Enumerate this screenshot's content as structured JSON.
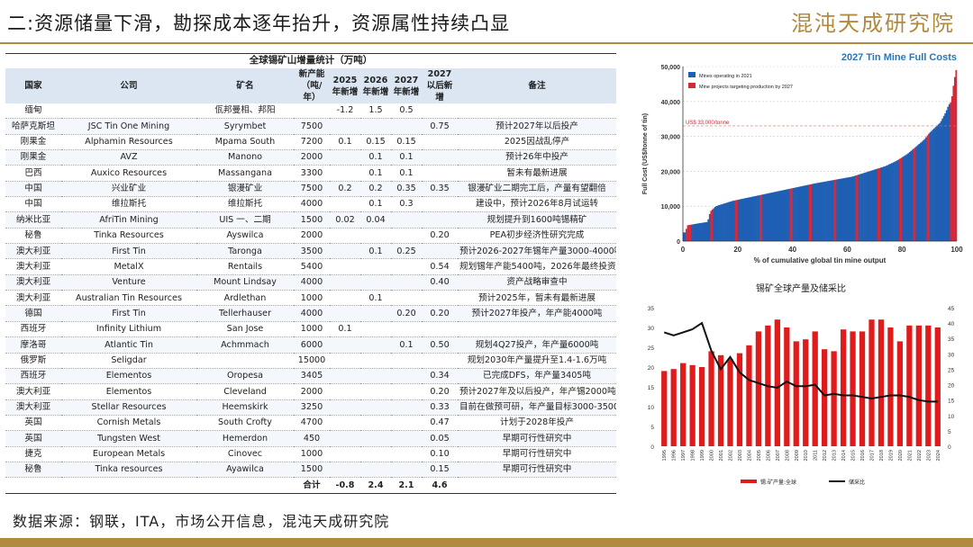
{
  "slide": {
    "title": "二:资源储量下滑，勘探成本逐年抬升，资源属性持续凸显",
    "logo": "混沌天成研究院",
    "source": "数据来源：钢联，ITA，市场公开信息，混沌天成研究院"
  },
  "table": {
    "caption": "全球锡矿山增量统计（万吨）",
    "headers": [
      "国家",
      "公司",
      "矿名",
      "新产能（吨/年）",
      "2025年新增",
      "2026年新增",
      "2027年新增",
      "2027以后新增",
      "备注"
    ],
    "rows": [
      [
        "缅甸",
        "",
        "佤邦曼相、邦阳",
        "",
        "-1.2",
        "1.5",
        "0.5",
        "",
        ""
      ],
      [
        "哈萨克斯坦",
        "JSC Tin One Mining",
        "Syrymbet",
        "7500",
        "",
        "",
        "",
        "0.75",
        "预计2027年以后投产"
      ],
      [
        "刚果金",
        "Alphamin Resources",
        "Mpama South",
        "7200",
        "0.1",
        "0.15",
        "0.15",
        "",
        "2025因战乱停产"
      ],
      [
        "刚果金",
        "AVZ",
        "Manono",
        "2000",
        "",
        "0.1",
        "0.1",
        "",
        "预计26年中投产"
      ],
      [
        "巴西",
        "Auxico Resources",
        "Massangana",
        "3300",
        "",
        "0.1",
        "0.1",
        "",
        "暂未有最新进展"
      ],
      [
        "中国",
        "兴业矿业",
        "银漫矿业",
        "7500",
        "0.2",
        "0.2",
        "0.35",
        "0.35",
        "银漫矿业二期完工后，产量有望翻倍"
      ],
      [
        "中国",
        "维拉斯托",
        "维拉斯托",
        "4000",
        "",
        "0.1",
        "0.3",
        "",
        "建设中，预计2026年8月试运转"
      ],
      [
        "纳米比亚",
        "AfriTin Mining",
        "UIS 一、二期",
        "1500",
        "0.02",
        "0.04",
        "",
        "",
        "规划提升到1600吨锡精矿"
      ],
      [
        "秘鲁",
        "Tinka Resources",
        "Ayswilca",
        "2000",
        "",
        "",
        "",
        "0.20",
        "PEA初步经济性研究完成"
      ],
      [
        "澳大利亚",
        "First Tin",
        "Taronga",
        "3500",
        "",
        "0.1",
        "0.25",
        "",
        "预计2026-2027年锡年产量3000-4000吨"
      ],
      [
        "澳大利亚",
        "MetalX",
        "Rentails",
        "5400",
        "",
        "",
        "",
        "0.54",
        "规划锡年产能5400吨，2026年最终投资决定"
      ],
      [
        "澳大利亚",
        "Venture",
        "Mount Lindsay",
        "4000",
        "",
        "",
        "",
        "0.40",
        "资产战略审查中"
      ],
      [
        "澳大利亚",
        "Australian Tin Resources",
        "Ardlethan",
        "1000",
        "",
        "0.1",
        "",
        "",
        "预计2025年，暂未有最新进展"
      ],
      [
        "德国",
        "First Tin",
        "Tellerhauser",
        "4000",
        "",
        "",
        "0.20",
        "0.20",
        "预计2027年投产，年产能4000吨"
      ],
      [
        "西班牙",
        "Infinity Lithium",
        "San Jose",
        "1000",
        "0.1",
        "",
        "",
        "",
        ""
      ],
      [
        "摩洛哥",
        "Atlantic Tin",
        "Achmmach",
        "6000",
        "",
        "",
        "0.1",
        "0.50",
        "规划4Q27投产，年产量6000吨"
      ],
      [
        "俄罗斯",
        "Seligdar",
        "",
        "15000",
        "",
        "",
        "",
        "",
        "规划2030年产量提升至1.4-1.6万吨"
      ],
      [
        "西班牙",
        "Elementos",
        "Oropesa",
        "3405",
        "",
        "",
        "",
        "0.34",
        "已完成DFS，年产量3405吨"
      ],
      [
        "澳大利亚",
        "Elementos",
        "Cleveland",
        "2000",
        "",
        "",
        "",
        "0.20",
        "预计2027年及以后投产，年产锡2000吨"
      ],
      [
        "澳大利亚",
        "Stellar Resources",
        "Heemskirk",
        "3250",
        "",
        "",
        "",
        "0.33",
        "目前在做预可研，年产量目标3000-3500吨"
      ],
      [
        "英国",
        "Cornish Metals",
        "South Crofty",
        "4700",
        "",
        "",
        "",
        "0.47",
        "计划于2028年投产"
      ],
      [
        "英国",
        "Tungsten West",
        "Hemerdon",
        "450",
        "",
        "",
        "",
        "0.05",
        "早期可行性研究中"
      ],
      [
        "捷克",
        "European Metals",
        "Cinovec",
        "1000",
        "",
        "",
        "",
        "0.10",
        "早期可行性研究中"
      ],
      [
        "秘鲁",
        "Tinka resources",
        "Ayawilca",
        "1500",
        "",
        "",
        "",
        "0.15",
        "早期可行性研究中"
      ]
    ],
    "total": [
      "",
      "",
      "",
      "合计",
      "-0.8",
      "2.4",
      "2.1",
      "4.6",
      ""
    ]
  },
  "chart_data": [
    {
      "type": "bar",
      "title": "2027 Tin Mine Full Costs",
      "xlabel": "% of cumulative global tin mine output",
      "ylabel": "Full Cost (US$/tonne of tin)",
      "xlim": [
        0,
        100
      ],
      "ylim": [
        0,
        50000
      ],
      "xticks": [
        "0",
        "20",
        "40",
        "60",
        "80",
        "100"
      ],
      "yticks": [
        "0",
        "10,000",
        "20,000",
        "30,000",
        "40,000",
        "50,000"
      ],
      "annotation": "US$ 33,000/tonne",
      "annotation_y": 33000,
      "legend": [
        "Mines operating in 2021",
        "Mine projects targeting production by 2027"
      ],
      "colors": {
        "operating": "#1f5fb4",
        "projects": "#d62839",
        "title": "#2e75b6"
      },
      "curve_x": [
        0,
        1,
        1.5,
        5,
        9,
        10,
        12,
        18,
        24,
        30,
        36,
        42,
        48,
        55,
        62,
        68,
        74,
        78,
        82,
        85,
        88,
        90,
        92,
        94,
        95,
        96,
        97,
        98,
        99,
        100
      ],
      "curve_y": [
        2500,
        2500,
        4500,
        5000,
        5500,
        8500,
        10000,
        11500,
        12500,
        13500,
        14500,
        15500,
        16500,
        17500,
        18500,
        20000,
        21500,
        23000,
        25000,
        27000,
        29000,
        31000,
        32500,
        34000,
        35500,
        37000,
        39000,
        40000,
        46000,
        50000
      ],
      "red_x": [
        [
          1,
          3
        ],
        [
          10,
          11
        ],
        [
          19,
          20
        ],
        [
          28,
          29
        ],
        [
          39,
          40
        ],
        [
          46,
          47
        ],
        [
          55,
          56
        ],
        [
          63,
          64
        ],
        [
          71,
          72
        ],
        [
          79,
          80
        ],
        [
          84,
          85
        ],
        [
          89,
          90
        ],
        [
          97.5,
          100
        ]
      ]
    },
    {
      "type": "bar",
      "title": "锡矿全球产量及储采比",
      "categories": [
        "1995",
        "1996",
        "1997",
        "1998",
        "1999",
        "2000",
        "2001",
        "2002",
        "2003",
        "2004",
        "2005",
        "2006",
        "2007",
        "2008",
        "2009",
        "2010",
        "2011",
        "2012",
        "2013",
        "2014",
        "2015",
        "2016",
        "2017",
        "2018",
        "2019",
        "2020",
        "2021",
        "2022",
        "2023",
        "2024"
      ],
      "series": [
        {
          "name": "锡:矿产量:全球",
          "axis": "left",
          "values": [
            19,
            19.5,
            21,
            20.5,
            20,
            24,
            23,
            22,
            23.5,
            25.5,
            29,
            30.5,
            32,
            30,
            26.5,
            27,
            29,
            24.5,
            24,
            29.5,
            29,
            29,
            32,
            32,
            30,
            26.5,
            30.5,
            30.5,
            30.5,
            30
          ],
          "color": "#e01b1b"
        },
        {
          "name": "储采比",
          "axis": "right",
          "values": [
            37,
            36,
            37,
            38,
            40,
            31,
            25,
            29,
            24,
            21.5,
            20.5,
            19.5,
            19,
            21,
            19.5,
            19.5,
            20,
            16.5,
            17,
            16.5,
            16.5,
            16,
            15.5,
            16,
            16.5,
            16.5,
            16,
            15,
            14.5,
            14.5
          ],
          "color": "#111111"
        }
      ],
      "ylim_left": [
        0,
        35
      ],
      "ylim_right": [
        0,
        45
      ],
      "yticks_left": [
        "0",
        "5",
        "10",
        "15",
        "20",
        "25",
        "30",
        "35"
      ],
      "yticks_right": [
        "0",
        "5",
        "10",
        "15",
        "20",
        "25",
        "30",
        "35",
        "40",
        "45"
      ]
    }
  ]
}
